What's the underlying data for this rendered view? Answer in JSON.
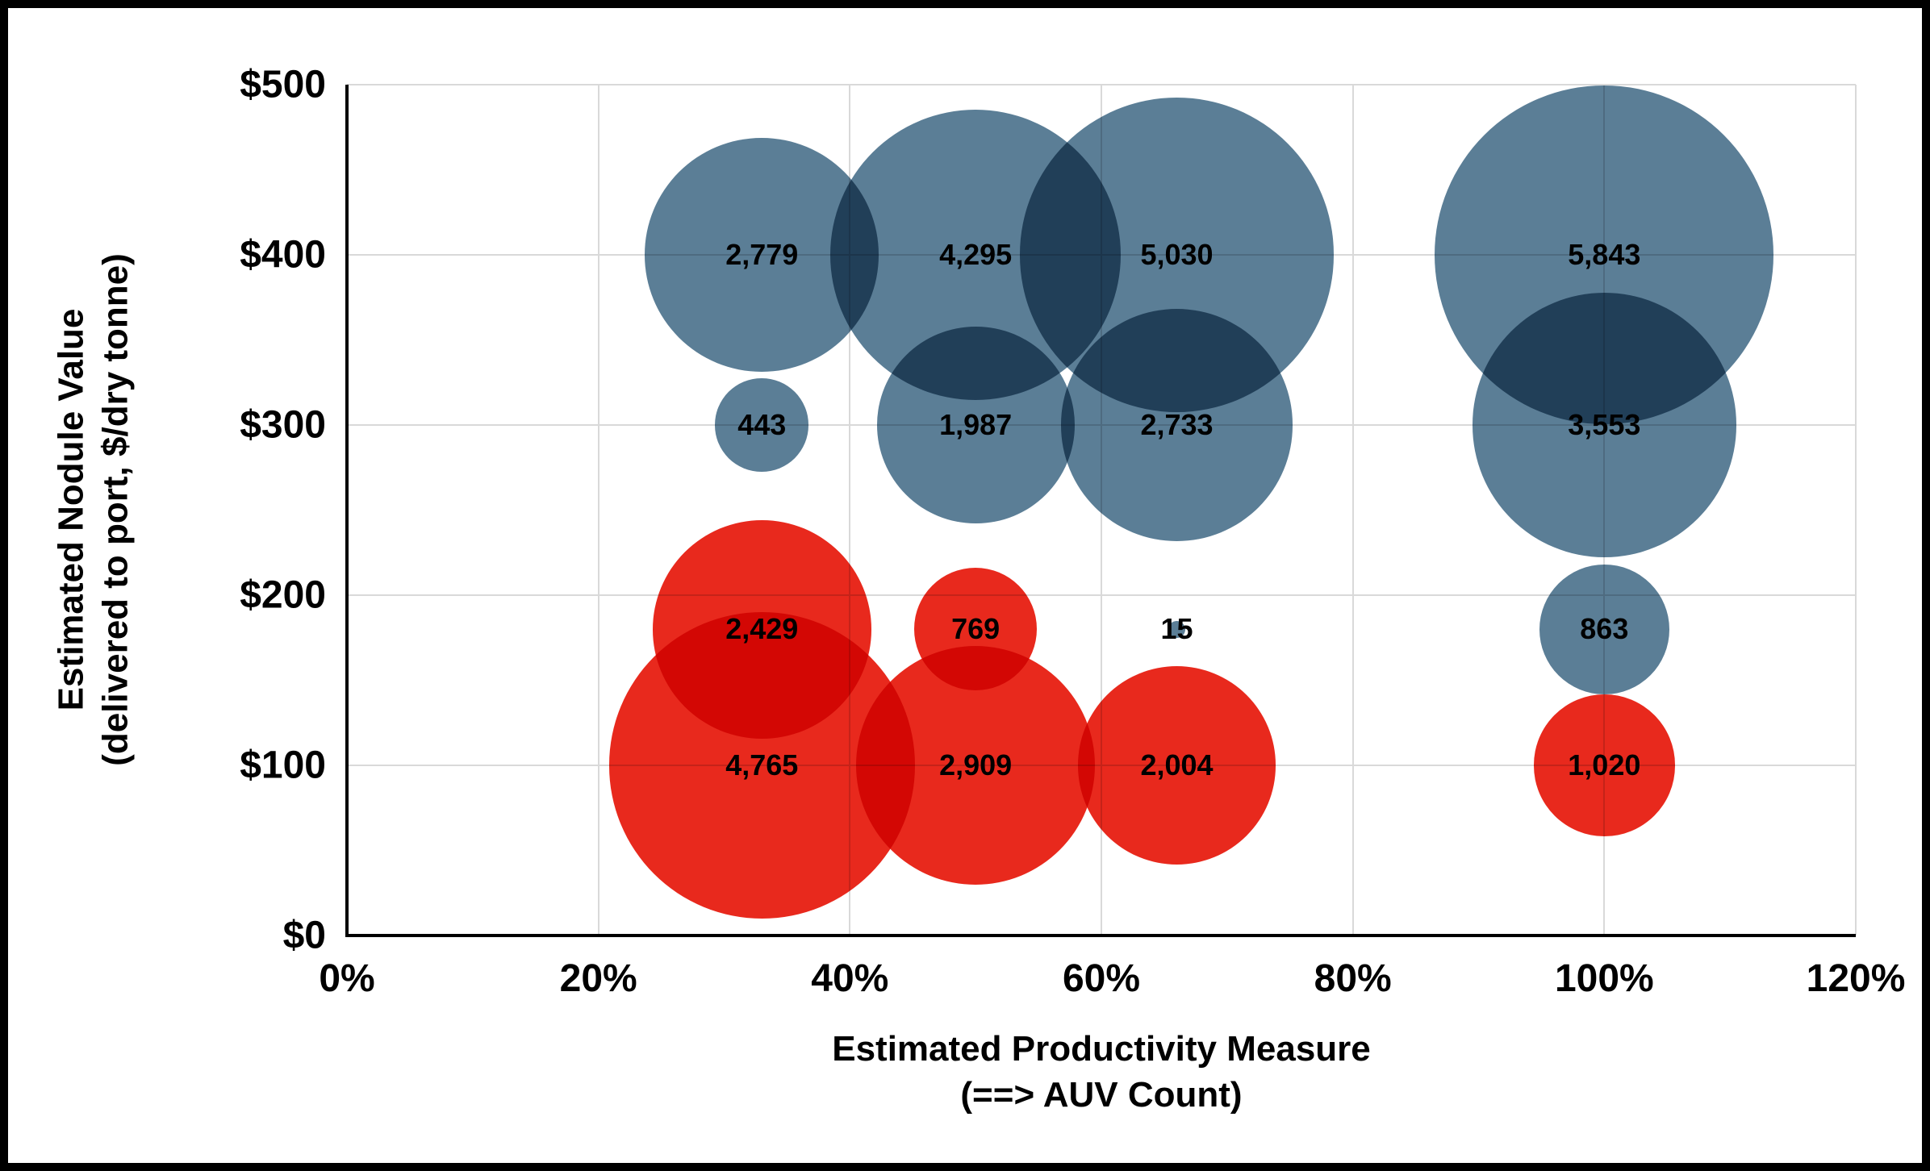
{
  "chart": {
    "y_title_line1": "Estimated Nodule Value",
    "y_title_line2": "(delivered to port, $/dry tonne)",
    "x_title_line1": "Estimated Productivity Measure",
    "x_title_line2": "(==> AUV Count)"
  },
  "chart_data": {
    "type": "bubble",
    "title": "",
    "xlabel": "Estimated Productivity Measure (==> AUV Count)",
    "ylabel": "Estimated Nodule Value (delivered to port, $/dry tonne)",
    "x_range": [
      0,
      120
    ],
    "y_range": [
      0,
      500
    ],
    "x_ticks": [
      "0%",
      "20%",
      "40%",
      "60%",
      "80%",
      "100%",
      "120%"
    ],
    "x_tick_values": [
      0,
      20,
      40,
      60,
      80,
      100,
      120
    ],
    "y_ticks": [
      "$0",
      "$100",
      "$200",
      "$300",
      "$400",
      "$500"
    ],
    "y_tick_values": [
      0,
      100,
      200,
      300,
      400,
      500
    ],
    "grid": true,
    "colors": {
      "blue_series": "#5B7E96",
      "red_series": "#E8291D"
    },
    "series": [
      {
        "name": "blue",
        "color": "#5B7E96",
        "points": [
          {
            "x": 33,
            "y": 400,
            "value": 2779,
            "label": "2,779"
          },
          {
            "x": 50,
            "y": 400,
            "value": 4295,
            "label": "4,295"
          },
          {
            "x": 66,
            "y": 400,
            "value": 5030,
            "label": "5,030"
          },
          {
            "x": 100,
            "y": 400,
            "value": 5843,
            "label": "5,843"
          },
          {
            "x": 33,
            "y": 300,
            "value": 443,
            "label": "443"
          },
          {
            "x": 50,
            "y": 300,
            "value": 1987,
            "label": "1,987"
          },
          {
            "x": 66,
            "y": 300,
            "value": 2733,
            "label": "2,733"
          },
          {
            "x": 100,
            "y": 300,
            "value": 3553,
            "label": "3,553"
          },
          {
            "x": 66,
            "y": 180,
            "value": 15,
            "label": "15"
          },
          {
            "x": 100,
            "y": 180,
            "value": 863,
            "label": "863"
          }
        ]
      },
      {
        "name": "red",
        "color": "#E8291D",
        "points": [
          {
            "x": 33,
            "y": 180,
            "value": 2429,
            "label": "2,429"
          },
          {
            "x": 50,
            "y": 180,
            "value": 769,
            "label": "769"
          },
          {
            "x": 33,
            "y": 100,
            "value": 4765,
            "label": "4,765"
          },
          {
            "x": 50,
            "y": 100,
            "value": 2909,
            "label": "2,909"
          },
          {
            "x": 66,
            "y": 100,
            "value": 2004,
            "label": "2,004"
          },
          {
            "x": 100,
            "y": 100,
            "value": 1020,
            "label": "1,020"
          }
        ]
      }
    ]
  }
}
